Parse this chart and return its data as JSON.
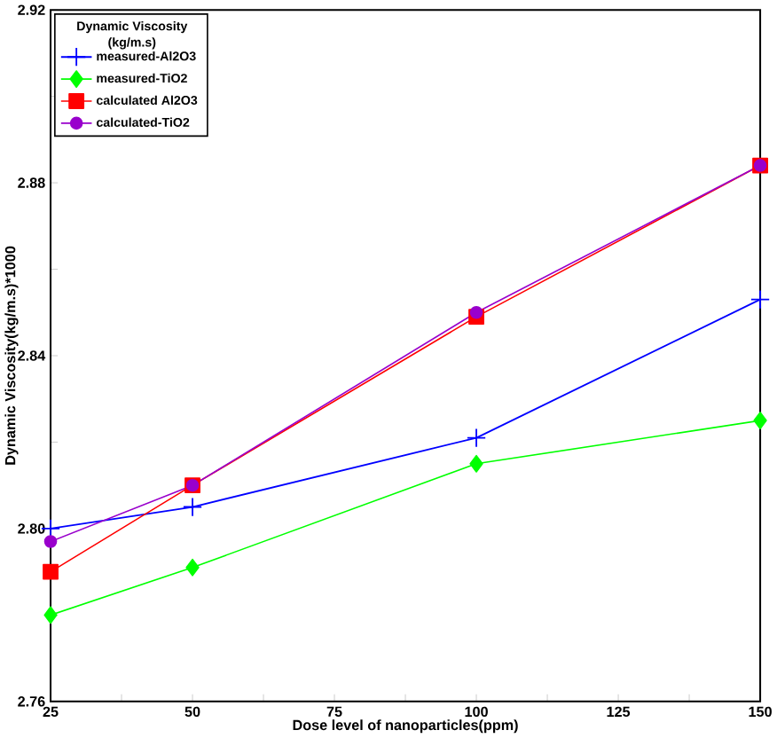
{
  "chart_data": {
    "type": "line",
    "xlabel": "Dose level of nanoparticles(ppm)",
    "ylabel": "Dynamic Viscosity(kg/m.s)*1000",
    "legend_title": "Dynamic Viscosity (kg/m.s)",
    "legend": "top left",
    "x": [
      25,
      50,
      100,
      150
    ],
    "xlim": [
      25,
      150
    ],
    "ylim": [
      2.76,
      2.92
    ],
    "xticks": [
      25,
      {
        "value": 37.5,
        "label": null
      },
      50,
      {
        "value": 62.5,
        "label": null
      },
      75,
      {
        "value": 87.5,
        "label": null
      },
      100,
      {
        "value": 112.5,
        "label": null
      },
      125,
      {
        "value": 137.5,
        "label": null
      },
      150
    ],
    "yticks": [
      {
        "value": 2.76,
        "label": "2.76"
      },
      {
        "value": 2.78,
        "label": null
      },
      {
        "value": 2.8,
        "label": "2.80"
      },
      {
        "value": 2.82,
        "label": null
      },
      {
        "value": 2.84,
        "label": "2.84"
      },
      {
        "value": 2.86,
        "label": null
      },
      {
        "value": 2.88,
        "label": "2.88"
      },
      {
        "value": 2.9,
        "label": null
      },
      {
        "value": 2.92,
        "label": "2.92"
      }
    ],
    "series": [
      {
        "name": "measured-Al2O3",
        "color": "#0000ff",
        "marker": "cross",
        "values": [
          2.8,
          2.805,
          2.821,
          2.853
        ]
      },
      {
        "name": "measured-TiO2",
        "color": "#00ff00",
        "marker": "diamond",
        "values": [
          2.78,
          2.791,
          2.815,
          2.825
        ]
      },
      {
        "name": "calculated Al2O3",
        "color": "#ff0000",
        "marker": "square",
        "values": [
          2.79,
          2.81,
          2.849,
          2.884
        ]
      },
      {
        "name": "calculated-TiO2",
        "color": "#9900cc",
        "marker": "circle",
        "values": [
          2.797,
          2.81,
          2.85,
          2.884
        ]
      }
    ]
  }
}
